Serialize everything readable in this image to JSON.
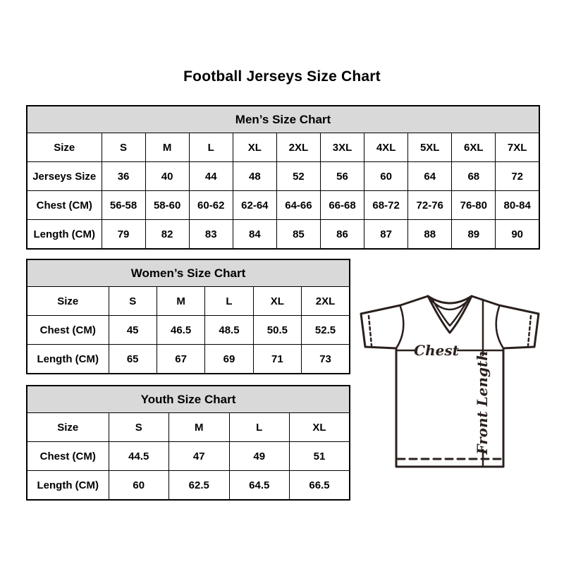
{
  "page": {
    "title": "Football Jerseys Size Chart"
  },
  "chart_data": [
    {
      "type": "table",
      "name": "mens-size-chart",
      "title": "Men’s Size Chart",
      "rows": [
        [
          "Size",
          "S",
          "M",
          "L",
          "XL",
          "2XL",
          "3XL",
          "4XL",
          "5XL",
          "6XL",
          "7XL"
        ],
        [
          "Jerseys Size",
          "36",
          "40",
          "44",
          "48",
          "52",
          "56",
          "60",
          "64",
          "68",
          "72"
        ],
        [
          "Chest (CM)",
          "56-58",
          "58-60",
          "60-62",
          "62-64",
          "64-66",
          "66-68",
          "68-72",
          "72-76",
          "76-80",
          "80-84"
        ],
        [
          "Length (CM)",
          "79",
          "82",
          "83",
          "84",
          "85",
          "86",
          "87",
          "88",
          "89",
          "90"
        ]
      ]
    },
    {
      "type": "table",
      "name": "womens-size-chart",
      "title": "Women’s Size Chart",
      "rows": [
        [
          "Size",
          "S",
          "M",
          "L",
          "XL",
          "2XL"
        ],
        [
          "Chest (CM)",
          "45",
          "46.5",
          "48.5",
          "50.5",
          "52.5"
        ],
        [
          "Length (CM)",
          "65",
          "67",
          "69",
          "71",
          "73"
        ]
      ]
    },
    {
      "type": "table",
      "name": "youth-size-chart",
      "title": "Youth Size Chart",
      "rows": [
        [
          "Size",
          "S",
          "M",
          "L",
          "XL"
        ],
        [
          "Chest (CM)",
          "44.5",
          "47",
          "49",
          "51"
        ],
        [
          "Length (CM)",
          "60",
          "62.5",
          "64.5",
          "66.5"
        ]
      ]
    }
  ],
  "diagram": {
    "chest_label": "Chest",
    "front_length_label": "Front Length"
  },
  "colors": {
    "header_bg": "#d9d9d9",
    "table_border": "#000000",
    "diagram_line": "#2a201d"
  }
}
